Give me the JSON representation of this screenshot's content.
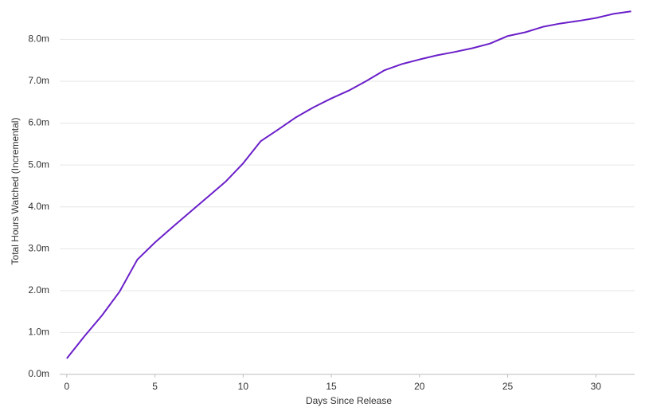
{
  "chart_data": {
    "type": "line",
    "xlabel": "Days Since Release",
    "ylabel": "Total Hours Watched (Incremental)",
    "x": [
      0,
      1,
      2,
      3,
      4,
      5,
      6,
      7,
      8,
      9,
      10,
      11,
      12,
      13,
      14,
      15,
      16,
      17,
      18,
      19,
      20,
      21,
      22,
      23,
      24,
      25,
      26,
      27,
      28,
      29,
      30,
      31,
      32
    ],
    "values": [
      0.38,
      0.91,
      1.41,
      1.98,
      2.74,
      3.15,
      3.52,
      3.88,
      4.24,
      4.6,
      5.04,
      5.57,
      5.85,
      6.14,
      6.38,
      6.59,
      6.78,
      7.01,
      7.26,
      7.41,
      7.52,
      7.62,
      7.7,
      7.79,
      7.9,
      8.08,
      8.17,
      8.3,
      8.38,
      8.44,
      8.51,
      8.61,
      8.67
    ],
    "color": "#6a1fc9",
    "xlim": [
      -0.4,
      32.2
    ],
    "xticks": [
      0,
      5,
      10,
      15,
      20,
      25,
      30
    ],
    "ylim": [
      0,
      8.75
    ],
    "yticks": [
      {
        "value": 0,
        "label": "0.0m"
      },
      {
        "value": 1,
        "label": "1.0m"
      },
      {
        "value": 2,
        "label": "2.0m"
      },
      {
        "value": 3,
        "label": "3.0m"
      },
      {
        "value": 4,
        "label": "4.0m"
      },
      {
        "value": 5,
        "label": "5.0m"
      },
      {
        "value": 6,
        "label": "6.0m"
      },
      {
        "value": 7,
        "label": "7.0m"
      },
      {
        "value": 8,
        "label": "8.0m"
      }
    ],
    "grid": true
  }
}
